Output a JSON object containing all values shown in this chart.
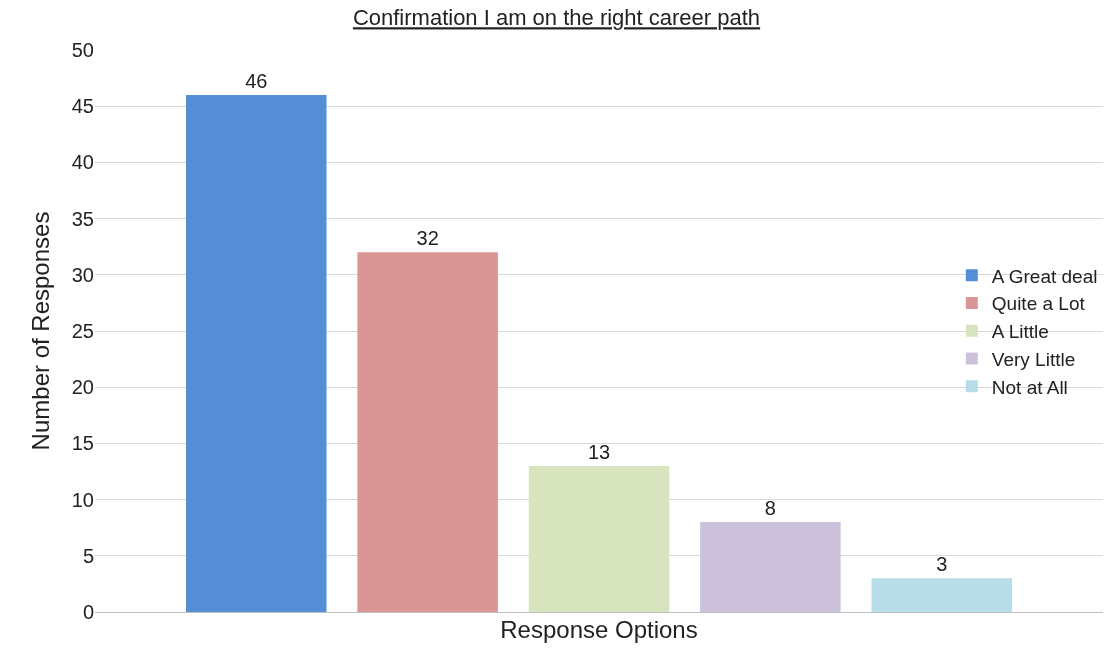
{
  "chart_data": {
    "type": "bar",
    "title": "Confirmation I am on the right career path",
    "xlabel": "Response Options",
    "ylabel": "Number of Responses",
    "categories": [
      null
    ],
    "series": [
      {
        "name": "A Great deal",
        "color": "#558ed5",
        "values": [
          46
        ]
      },
      {
        "name": "Quite a Lot",
        "color": "#d99694",
        "values": [
          32
        ]
      },
      {
        "name": "A Little",
        "color": "#d7e4bd",
        "values": [
          13
        ]
      },
      {
        "name": "Very Little",
        "color": "#ccc1da",
        "values": [
          8
        ]
      },
      {
        "name": "Not at All",
        "color": "#b7dee8",
        "values": [
          3
        ]
      }
    ],
    "ylim": [
      0,
      50
    ],
    "yticks": [
      0,
      5,
      10,
      15,
      20,
      25,
      30,
      35,
      40,
      45,
      50
    ],
    "grid": "y",
    "legend": "right",
    "data_labels": true
  }
}
